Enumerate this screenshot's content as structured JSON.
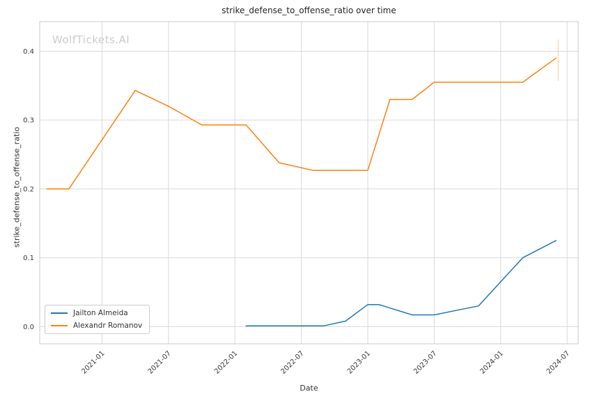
{
  "watermark": "WolfTickets.AI",
  "chart_data": {
    "type": "line",
    "title": "strike_defense_to_offense_ratio over time",
    "xlabel": "Date",
    "ylabel": "strike_defense_to_offense_ratio",
    "x_tick_labels": [
      "2021-01",
      "2021-07",
      "2022-01",
      "2022-07",
      "2023-01",
      "2023-07",
      "2024-01",
      "2024-07"
    ],
    "y_tick_labels": [
      "0.0",
      "0.1",
      "0.2",
      "0.3",
      "0.4"
    ],
    "x_domain": [
      "2020-07-12",
      "2024-08-01"
    ],
    "ylim": [
      -0.025,
      0.443
    ],
    "grid": true,
    "legend_position": "lower left",
    "grid_color": "#d9d9d9",
    "spine_color": "#c8c8c8",
    "series": [
      {
        "name": "Jailton Almeida",
        "color": "#1f77b4",
        "points": [
          [
            "2022-02",
            0.001
          ],
          [
            "2022-09",
            0.001
          ],
          [
            "2022-11",
            0.008
          ],
          [
            "2023-01",
            0.032
          ],
          [
            "2023-02",
            0.032
          ],
          [
            "2023-05",
            0.017
          ],
          [
            "2023-07",
            0.017
          ],
          [
            "2023-11",
            0.03
          ],
          [
            "2024-03",
            0.1
          ],
          [
            "2024-06",
            0.125
          ]
        ]
      },
      {
        "name": "Alexandr Romanov",
        "color": "#ff7f0e",
        "points": [
          [
            "2020-08",
            0.2
          ],
          [
            "2020-10",
            0.2
          ],
          [
            "2021-04",
            0.343
          ],
          [
            "2021-07",
            0.32
          ],
          [
            "2021-10",
            0.293
          ],
          [
            "2022-02",
            0.293
          ],
          [
            "2022-05",
            0.238
          ],
          [
            "2022-08",
            0.227
          ],
          [
            "2023-01",
            0.227
          ],
          [
            "2023-03",
            0.33
          ],
          [
            "2023-05",
            0.33
          ],
          [
            "2023-07",
            0.355
          ],
          [
            "2024-03",
            0.355
          ],
          [
            "2024-06",
            0.39
          ]
        ]
      }
    ],
    "terminal_marker": {
      "x": "2024-06",
      "y_from": 0.357,
      "y_to": 0.417,
      "color": "#ffc08a"
    }
  }
}
